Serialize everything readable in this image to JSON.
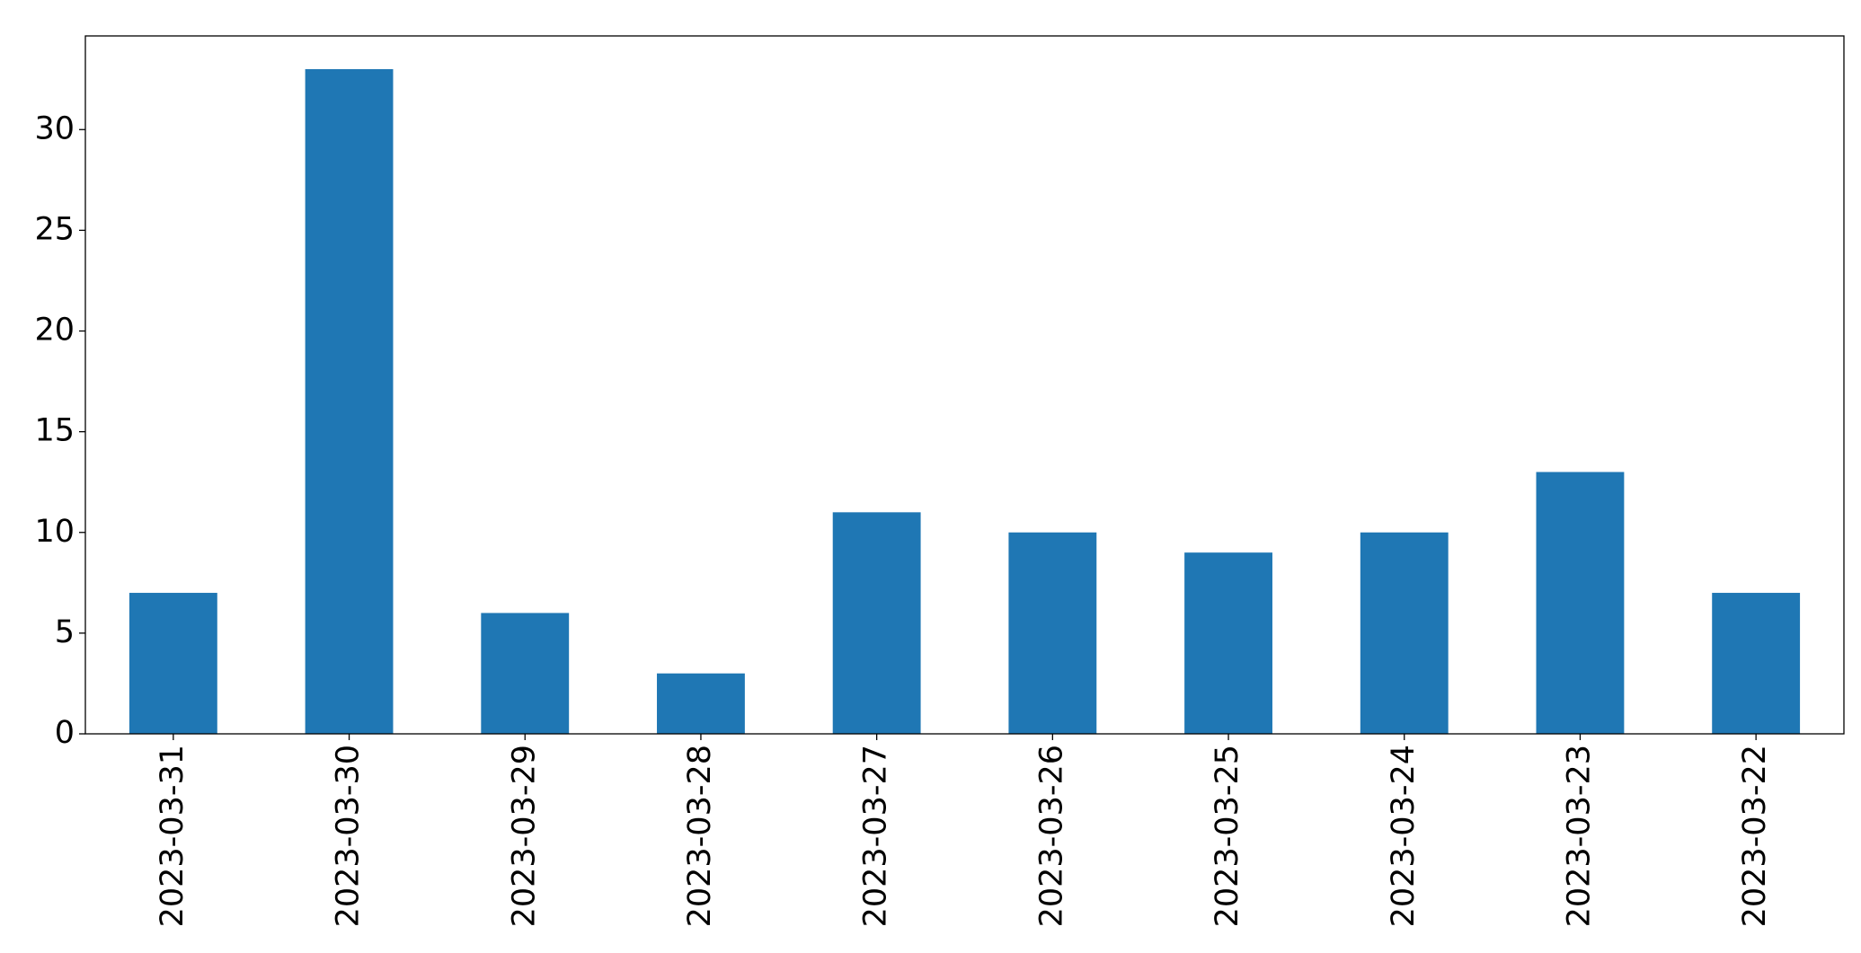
{
  "chart_data": {
    "type": "bar",
    "categories": [
      "2023-03-31",
      "2023-03-30",
      "2023-03-29",
      "2023-03-28",
      "2023-03-27",
      "2023-03-26",
      "2023-03-25",
      "2023-03-24",
      "2023-03-23",
      "2023-03-22"
    ],
    "values": [
      7,
      33,
      6,
      3,
      11,
      10,
      9,
      10,
      13,
      7
    ],
    "color": "#1f77b4",
    "ylim": [
      0,
      34.65
    ],
    "yticks": [
      0,
      5,
      10,
      15,
      20,
      25,
      30
    ],
    "grid": false
  }
}
